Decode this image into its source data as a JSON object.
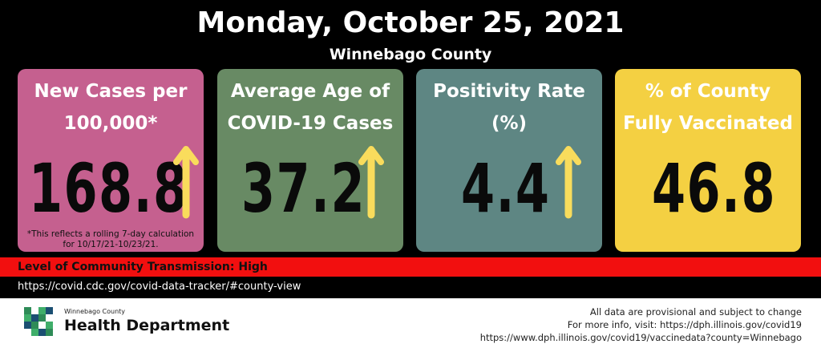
{
  "header": {
    "title": "Monday, October 25, 2021",
    "county": "Winnebago County"
  },
  "cards": [
    {
      "label": "New Cases per\n100,000*",
      "value": "168.8",
      "trend": "up",
      "note": "*This reflects a rolling 7-day calculation\nfor 10/17/21-10/23/21.",
      "color": "#c5608f"
    },
    {
      "label": "Average Age of\nCOVID-19 Cases",
      "value": "37.2",
      "trend": "up",
      "color": "#688a64"
    },
    {
      "label": "Positivity Rate\n(%)",
      "value": "4.4",
      "trend": "up",
      "color": "#5e8683"
    },
    {
      "label": "% of County\nFully Vaccinated",
      "value": "46.8",
      "color": "#f4d042"
    }
  ],
  "arrow_color": "#f9dc5c",
  "transmission": {
    "label": "Level of Community Transmission: High",
    "color": "#f20f0f"
  },
  "cdc_link": "https://covid.cdc.gov/covid-data-tracker/#county-view",
  "footer": {
    "org_small": "Winnebago County",
    "org_big": "Health Department",
    "line1": "All data are provisional and subject to change",
    "line2": "For more info, visit: https://dph.illinois.gov/covid19",
    "line3": "https://www.dph.illinois.gov/covid19/vaccinedata?county=Winnebago"
  }
}
